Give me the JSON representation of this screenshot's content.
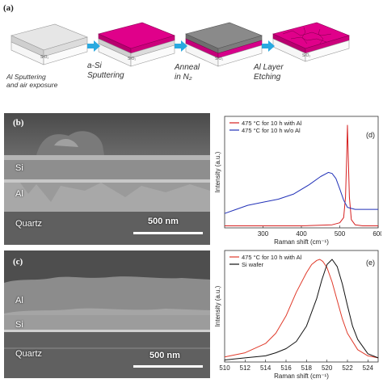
{
  "panel_a": {
    "letter": "(a)",
    "steps": [
      {
        "label_line1": "Al Sputtering",
        "label_line2": "and air exposure"
      },
      {
        "label_line1": "a-Si",
        "label_line2": "Sputtering"
      },
      {
        "label_line1": "Anneal",
        "label_line2": "in N₂"
      },
      {
        "label_line1": "Al Layer",
        "label_line2": "Etching"
      }
    ],
    "block_labels": [
      "SiO₂",
      "SiO₂",
      "SiO₂",
      "SiO₂"
    ],
    "colors": {
      "al": "#d8d8d8",
      "si_pink": "#e0008a",
      "si_gray": "#8a8a8a",
      "quartz": "#f4f4f4",
      "arrow": "#29a9e0"
    }
  },
  "panel_b": {
    "letter": "(b)",
    "labels": [
      "Si",
      "Al",
      "Quartz"
    ],
    "scalebar": "500 nm"
  },
  "panel_c": {
    "letter": "(c)",
    "labels": [
      "Al",
      "Si",
      "Quartz"
    ],
    "scalebar": "500 nm"
  },
  "chart_data": [
    {
      "panel": "(d)",
      "type": "line",
      "xlabel": "Raman shift (cm⁻¹)",
      "ylabel": "Intensity (a.u.)",
      "xlim": [
        200,
        600
      ],
      "xticks": [
        300,
        400,
        500,
        600
      ],
      "legend_position": "top-left",
      "series": [
        {
          "name": "475 °C for 10 h with Al",
          "color": "#d62020",
          "x": [
            200,
            300,
            400,
            480,
            500,
            510,
            515,
            518,
            520,
            522,
            525,
            530,
            540,
            560,
            600
          ],
          "y": [
            0.02,
            0.02,
            0.02,
            0.03,
            0.05,
            0.1,
            0.3,
            0.7,
            1.0,
            0.7,
            0.3,
            0.08,
            0.03,
            0.02,
            0.02
          ]
        },
        {
          "name": "475 °C for 10 h w/o Al",
          "color": "#2232b8",
          "x": [
            200,
            230,
            260,
            300,
            340,
            380,
            420,
            450,
            470,
            480,
            490,
            500,
            510,
            520,
            540,
            560,
            600
          ],
          "y": [
            0.14,
            0.18,
            0.22,
            0.25,
            0.28,
            0.33,
            0.42,
            0.5,
            0.54,
            0.53,
            0.48,
            0.38,
            0.27,
            0.2,
            0.18,
            0.18,
            0.18
          ]
        }
      ]
    },
    {
      "panel": "(e)",
      "type": "line",
      "xlabel": "Raman shift (cm⁻¹)",
      "ylabel": "Intensity (a.u.)",
      "xlim": [
        510,
        525
      ],
      "xticks": [
        510,
        512,
        514,
        516,
        518,
        520,
        522,
        524
      ],
      "legend_position": "top-left",
      "series": [
        {
          "name": "475 °C for 10 h with Al",
          "color": "#e03a2a",
          "x": [
            510,
            512,
            514,
            515,
            516,
            517,
            518,
            518.5,
            519,
            519.3,
            519.6,
            520,
            520.5,
            521,
            521.5,
            522,
            523,
            524,
            525
          ],
          "y": [
            0.05,
            0.09,
            0.18,
            0.28,
            0.45,
            0.68,
            0.87,
            0.95,
            0.99,
            1.0,
            0.98,
            0.92,
            0.78,
            0.6,
            0.42,
            0.28,
            0.12,
            0.06,
            0.04
          ]
        },
        {
          "name": "Si wafer",
          "color": "#111111",
          "x": [
            510,
            512,
            514,
            515,
            516,
            517,
            518,
            519,
            519.5,
            520,
            520.5,
            521,
            521.5,
            522,
            522.5,
            523,
            524,
            525
          ],
          "y": [
            0.02,
            0.04,
            0.06,
            0.09,
            0.13,
            0.2,
            0.35,
            0.62,
            0.8,
            0.95,
            1.0,
            0.93,
            0.76,
            0.55,
            0.35,
            0.22,
            0.08,
            0.04
          ]
        }
      ]
    }
  ]
}
